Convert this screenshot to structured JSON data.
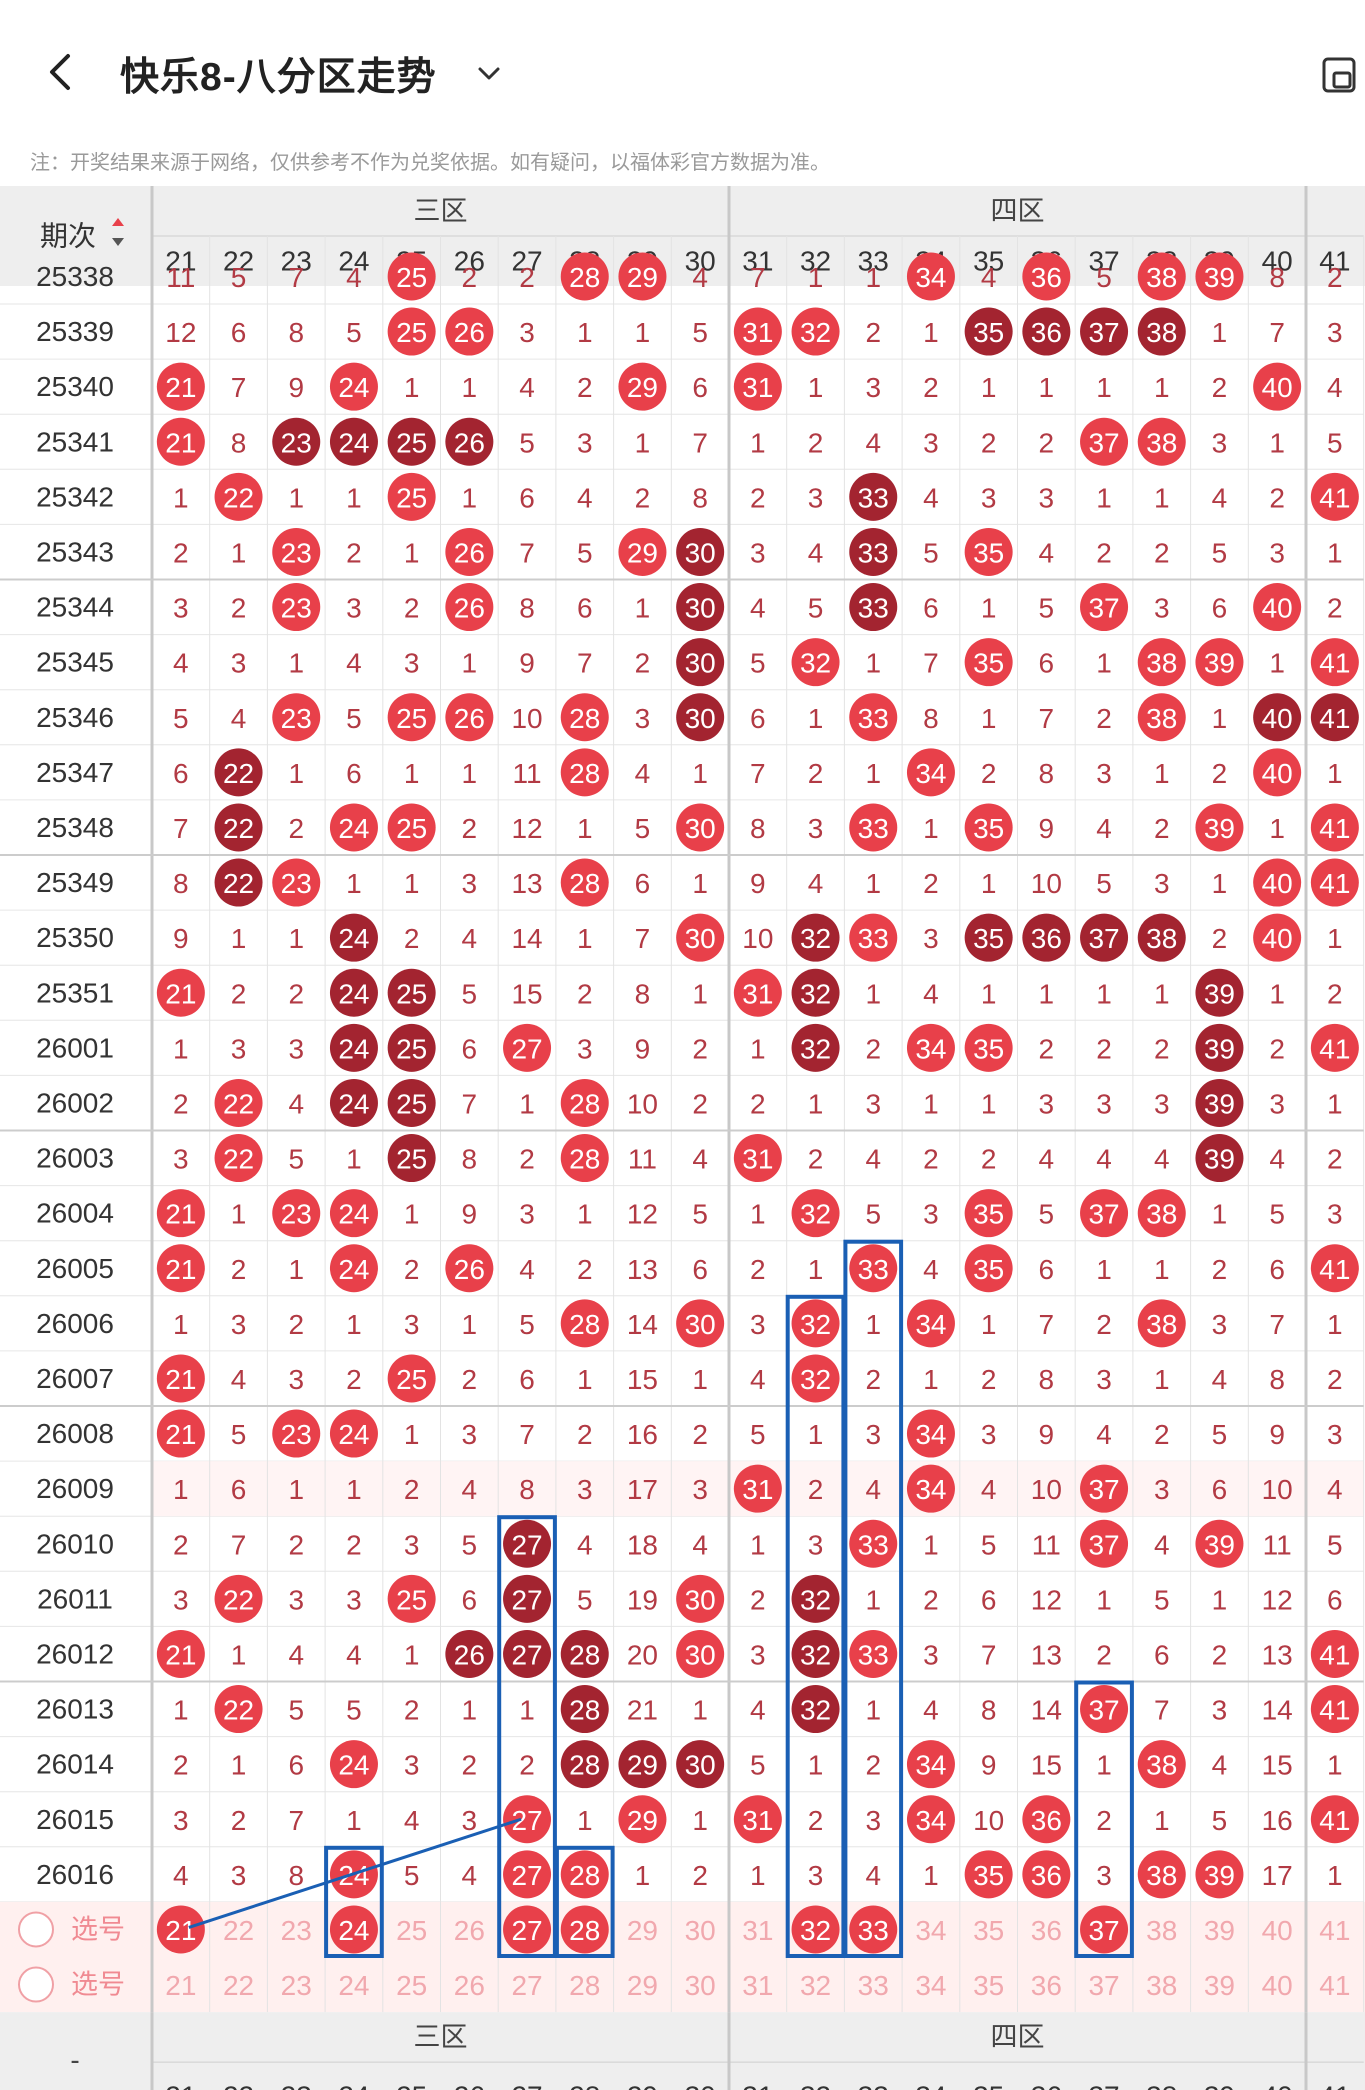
{
  "header": {
    "title": "快乐8-八分区走势",
    "back_icon": "back-arrow-icon",
    "dropdown_icon": "chevron-down-icon",
    "right_icon": "device-icon"
  },
  "note": "注：开奖结果来源于网络，仅供参考不作为兑奖依据。如有疑问，以福体彩官方数据为准。",
  "table": {
    "period_header": "期次",
    "zones": [
      "三区",
      "四区"
    ],
    "columns": [
      21,
      22,
      23,
      24,
      25,
      26,
      27,
      28,
      29,
      30,
      31,
      32,
      33,
      34,
      35,
      36,
      37,
      38,
      39,
      40,
      41
    ],
    "partial_top_row": [
      11,
      5,
      7,
      4,
      25,
      2,
      2,
      28,
      29,
      4,
      7,
      1,
      1,
      34,
      4,
      36,
      5,
      38,
      39,
      8,
      2
    ],
    "partial_top_period": "25338",
    "rows": [
      {
        "period": "25339",
        "vals": [
          12,
          6,
          8,
          5,
          25,
          26,
          3,
          1,
          1,
          5,
          31,
          32,
          2,
          1,
          35,
          36,
          37,
          38,
          1,
          7,
          3
        ],
        "dark": [
          35,
          36,
          37,
          38
        ]
      },
      {
        "period": "25340",
        "vals": [
          21,
          7,
          9,
          24,
          1,
          1,
          4,
          2,
          29,
          6,
          31,
          1,
          3,
          2,
          1,
          1,
          1,
          1,
          2,
          40,
          4
        ],
        "dark": []
      },
      {
        "period": "25341",
        "vals": [
          21,
          8,
          23,
          24,
          25,
          26,
          5,
          3,
          1,
          7,
          1,
          2,
          4,
          3,
          2,
          2,
          37,
          38,
          3,
          1,
          5
        ],
        "dark": [
          23,
          24,
          25,
          26
        ]
      },
      {
        "period": "25342",
        "vals": [
          1,
          22,
          1,
          1,
          25,
          1,
          6,
          4,
          2,
          8,
          2,
          3,
          33,
          4,
          3,
          3,
          1,
          1,
          4,
          2,
          41
        ],
        "dark": [
          33
        ]
      },
      {
        "period": "25343",
        "vals": [
          2,
          1,
          23,
          2,
          1,
          26,
          7,
          5,
          29,
          30,
          3,
          4,
          33,
          5,
          35,
          4,
          2,
          2,
          5,
          3,
          1
        ],
        "dark": [
          30,
          33
        ]
      },
      {
        "period": "25344",
        "vals": [
          3,
          2,
          23,
          3,
          2,
          26,
          8,
          6,
          1,
          30,
          4,
          5,
          33,
          6,
          1,
          5,
          37,
          3,
          6,
          40,
          2
        ],
        "dark": [
          30,
          33
        ]
      },
      {
        "period": "25345",
        "vals": [
          4,
          3,
          1,
          4,
          3,
          1,
          9,
          7,
          2,
          30,
          5,
          32,
          1,
          7,
          35,
          6,
          1,
          38,
          39,
          1,
          41
        ],
        "dark": [
          30
        ]
      },
      {
        "period": "25346",
        "vals": [
          5,
          4,
          23,
          5,
          25,
          26,
          10,
          28,
          3,
          30,
          6,
          1,
          33,
          8,
          1,
          7,
          2,
          38,
          1,
          40,
          41
        ],
        "dark": [
          30,
          40,
          41
        ]
      },
      {
        "period": "25347",
        "vals": [
          6,
          22,
          1,
          6,
          1,
          1,
          11,
          28,
          4,
          1,
          7,
          2,
          1,
          34,
          2,
          8,
          3,
          1,
          2,
          40,
          1
        ],
        "dark": [
          22
        ]
      },
      {
        "period": "25348",
        "vals": [
          7,
          22,
          2,
          24,
          25,
          2,
          12,
          1,
          5,
          30,
          8,
          3,
          33,
          1,
          35,
          9,
          4,
          2,
          39,
          1,
          41
        ],
        "dark": [
          22
        ]
      },
      {
        "period": "25349",
        "vals": [
          8,
          22,
          23,
          1,
          1,
          3,
          13,
          28,
          6,
          1,
          9,
          4,
          1,
          2,
          1,
          10,
          5,
          3,
          1,
          40,
          41
        ],
        "dark": [
          22
        ]
      },
      {
        "period": "25350",
        "vals": [
          9,
          1,
          1,
          24,
          2,
          4,
          14,
          1,
          7,
          30,
          10,
          32,
          33,
          3,
          35,
          36,
          37,
          38,
          2,
          40,
          1
        ],
        "dark": [
          24,
          32,
          35,
          36,
          37,
          38
        ]
      },
      {
        "period": "25351",
        "vals": [
          21,
          2,
          2,
          24,
          25,
          5,
          15,
          2,
          8,
          1,
          31,
          32,
          1,
          4,
          1,
          1,
          1,
          1,
          39,
          1,
          2
        ],
        "dark": [
          24,
          25,
          32,
          39
        ]
      },
      {
        "period": "26001",
        "vals": [
          1,
          3,
          3,
          24,
          25,
          6,
          27,
          3,
          9,
          2,
          1,
          32,
          2,
          34,
          35,
          2,
          2,
          2,
          39,
          2,
          41
        ],
        "dark": [
          24,
          25,
          32,
          39
        ]
      },
      {
        "period": "26002",
        "vals": [
          2,
          22,
          4,
          24,
          25,
          7,
          1,
          28,
          10,
          2,
          2,
          1,
          3,
          1,
          1,
          3,
          3,
          3,
          39,
          3,
          1
        ],
        "dark": [
          24,
          25,
          39
        ]
      },
      {
        "period": "26003",
        "vals": [
          3,
          22,
          5,
          1,
          25,
          8,
          2,
          28,
          11,
          4,
          31,
          2,
          4,
          2,
          2,
          4,
          4,
          4,
          39,
          4,
          2
        ],
        "dark": [
          25,
          39
        ]
      },
      {
        "period": "26004",
        "vals": [
          21,
          1,
          23,
          24,
          1,
          9,
          3,
          1,
          12,
          5,
          1,
          32,
          5,
          3,
          35,
          5,
          37,
          38,
          1,
          5,
          3
        ],
        "dark": []
      },
      {
        "period": "26005",
        "vals": [
          21,
          2,
          1,
          24,
          2,
          26,
          4,
          2,
          13,
          6,
          2,
          1,
          33,
          4,
          35,
          6,
          1,
          1,
          2,
          6,
          41
        ],
        "dark": []
      },
      {
        "period": "26006",
        "vals": [
          1,
          3,
          2,
          1,
          3,
          1,
          5,
          28,
          14,
          30,
          3,
          32,
          1,
          34,
          1,
          7,
          2,
          38,
          3,
          7,
          1
        ],
        "dark": []
      },
      {
        "period": "26007",
        "vals": [
          21,
          4,
          3,
          2,
          25,
          2,
          6,
          1,
          15,
          1,
          4,
          32,
          2,
          1,
          2,
          8,
          3,
          1,
          4,
          8,
          2
        ],
        "dark": []
      },
      {
        "period": "26008",
        "vals": [
          21,
          5,
          23,
          24,
          1,
          3,
          7,
          2,
          16,
          2,
          5,
          1,
          3,
          34,
          3,
          9,
          4,
          2,
          5,
          9,
          3
        ],
        "dark": []
      },
      {
        "period": "26009",
        "vals": [
          1,
          6,
          1,
          1,
          2,
          4,
          8,
          3,
          17,
          3,
          31,
          2,
          4,
          34,
          4,
          10,
          37,
          3,
          6,
          10,
          4
        ],
        "dark": []
      },
      {
        "period": "26010",
        "vals": [
          2,
          7,
          2,
          2,
          3,
          5,
          27,
          4,
          18,
          4,
          1,
          3,
          33,
          1,
          5,
          11,
          37,
          4,
          39,
          11,
          5
        ],
        "dark": [
          27
        ]
      },
      {
        "period": "26011",
        "vals": [
          3,
          22,
          3,
          3,
          25,
          6,
          27,
          5,
          19,
          30,
          2,
          32,
          1,
          2,
          6,
          12,
          1,
          5,
          1,
          12,
          6
        ],
        "dark": [
          27,
          32
        ]
      },
      {
        "period": "26012",
        "vals": [
          21,
          1,
          4,
          4,
          1,
          26,
          27,
          28,
          20,
          30,
          3,
          32,
          33,
          3,
          7,
          13,
          2,
          6,
          2,
          13,
          41
        ],
        "dark": [
          26,
          27,
          28,
          32
        ]
      },
      {
        "period": "26013",
        "vals": [
          1,
          22,
          5,
          5,
          2,
          1,
          1,
          28,
          21,
          1,
          4,
          32,
          1,
          4,
          8,
          14,
          37,
          7,
          3,
          14,
          41
        ],
        "dark": [
          28,
          32
        ]
      },
      {
        "period": "26014",
        "vals": [
          2,
          1,
          6,
          24,
          3,
          2,
          2,
          28,
          29,
          30,
          5,
          1,
          2,
          34,
          9,
          15,
          1,
          38,
          4,
          15,
          1
        ],
        "dark": [
          28,
          29,
          30
        ]
      },
      {
        "period": "26015",
        "vals": [
          3,
          2,
          7,
          1,
          4,
          3,
          27,
          1,
          29,
          1,
          31,
          2,
          3,
          34,
          10,
          36,
          2,
          1,
          5,
          16,
          41
        ],
        "dark": []
      },
      {
        "period": "26016",
        "vals": [
          4,
          3,
          8,
          24,
          5,
          4,
          27,
          28,
          1,
          2,
          1,
          3,
          4,
          1,
          35,
          36,
          3,
          38,
          39,
          17,
          1
        ],
        "dark": []
      }
    ],
    "select_label": "选号",
    "select_row_1_selected": [
      21,
      24,
      27,
      28,
      32,
      33,
      37
    ],
    "footer_zones": [
      "三区",
      "四区"
    ],
    "footer_dash": "-"
  },
  "colors": {
    "red": "#e8404a",
    "dark_red": "#a32430",
    "text_red": "#b23a44",
    "select_text": "#f1a8ae",
    "select_bg": "#fff0ef",
    "blue_box": "#1a5fb4"
  }
}
